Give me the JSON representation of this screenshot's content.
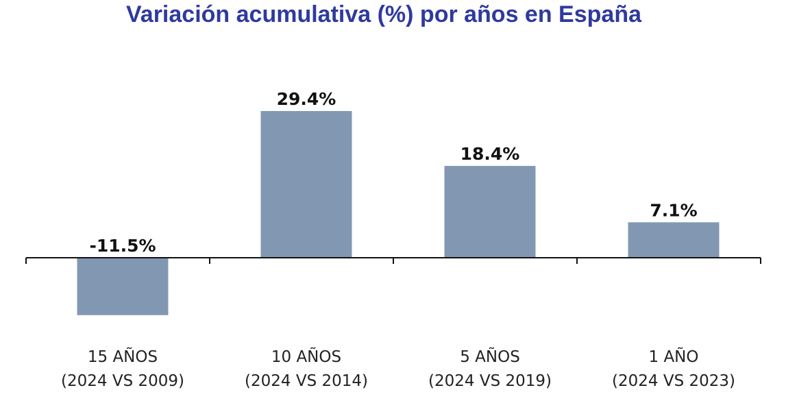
{
  "chart_data": {
    "type": "bar",
    "title": "Variación acumulativa (%) por años en España",
    "categories": [
      [
        "15 AÑOS",
        "(2024 VS 2009)"
      ],
      [
        "10 AÑOS",
        "(2024 VS 2014)"
      ],
      [
        "5 AÑOS",
        "(2024 VS 2019)"
      ],
      [
        "1 AÑO",
        "(2024 VS 2023)"
      ]
    ],
    "values": [
      -11.5,
      29.4,
      18.4,
      7.1
    ],
    "data_labels": [
      "-11.5%",
      "29.4%",
      "18.4%",
      "7.1%"
    ],
    "xlabel": "",
    "ylabel": "",
    "ylim": [
      -15,
      30
    ],
    "grid": false,
    "colors": {
      "bar": "#8298b2",
      "title": "#2f3a9e",
      "axis": "#111111"
    }
  }
}
